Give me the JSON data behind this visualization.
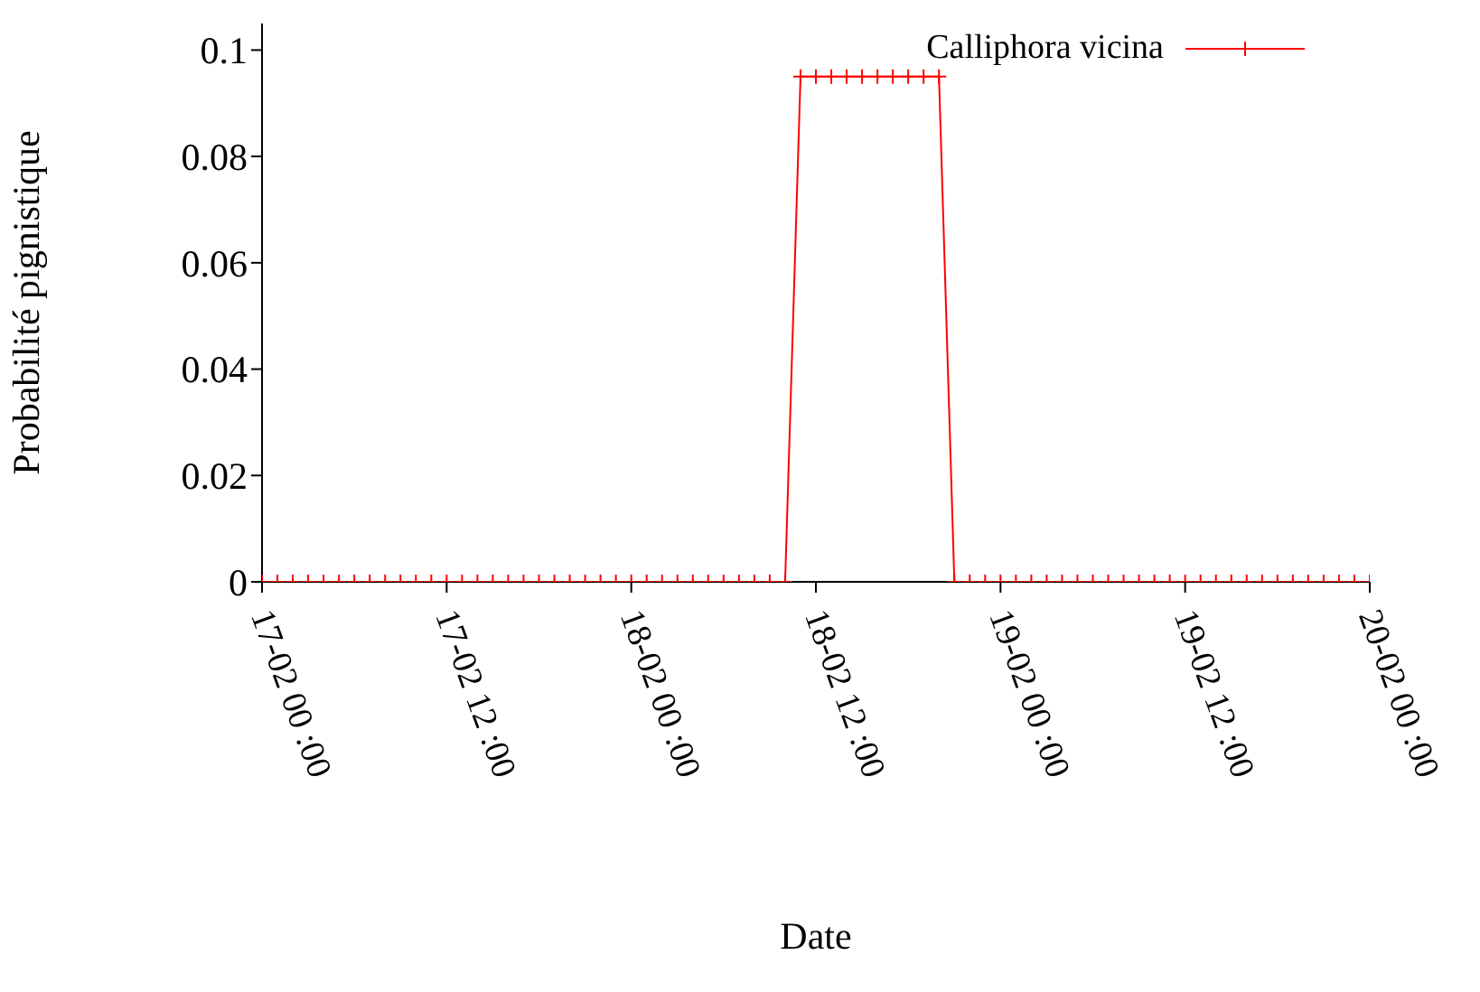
{
  "chart_data": {
    "type": "line",
    "xlabel": "Date",
    "ylabel": "Probabilité pignistique",
    "x": [
      "--02-17T00:00",
      "--02-17T01:00",
      "--02-17T02:00",
      "--02-17T03:00",
      "--02-17T04:00",
      "--02-17T05:00",
      "--02-17T06:00",
      "--02-17T07:00",
      "--02-17T08:00",
      "--02-17T09:00",
      "--02-17T10:00",
      "--02-17T11:00",
      "--02-17T12:00",
      "--02-17T13:00",
      "--02-17T14:00",
      "--02-17T15:00",
      "--02-17T16:00",
      "--02-17T17:00",
      "--02-17T18:00",
      "--02-17T19:00",
      "--02-17T20:00",
      "--02-17T21:00",
      "--02-17T22:00",
      "--02-17T23:00",
      "--02-18T00:00",
      "--02-18T01:00",
      "--02-18T02:00",
      "--02-18T03:00",
      "--02-18T04:00",
      "--02-18T05:00",
      "--02-18T06:00",
      "--02-18T07:00",
      "--02-18T08:00",
      "--02-18T09:00",
      "--02-18T10:00",
      "--02-18T11:00",
      "--02-18T12:00",
      "--02-18T13:00",
      "--02-18T14:00",
      "--02-18T15:00",
      "--02-18T16:00",
      "--02-18T17:00",
      "--02-18T18:00",
      "--02-18T19:00",
      "--02-18T20:00",
      "--02-18T21:00",
      "--02-18T22:00",
      "--02-18T23:00",
      "--02-19T00:00",
      "--02-19T01:00",
      "--02-19T02:00",
      "--02-19T03:00",
      "--02-19T04:00",
      "--02-19T05:00",
      "--02-19T06:00",
      "--02-19T07:00",
      "--02-19T08:00",
      "--02-19T09:00",
      "--02-19T10:00",
      "--02-19T11:00",
      "--02-19T12:00",
      "--02-19T13:00",
      "--02-19T14:00",
      "--02-19T15:00",
      "--02-19T16:00",
      "--02-19T17:00",
      "--02-19T18:00",
      "--02-19T19:00",
      "--02-19T20:00",
      "--02-19T21:00",
      "--02-19T22:00",
      "--02-19T23:00",
      "--02-20T00:00"
    ],
    "series": [
      {
        "name": "Calliphora vicina",
        "color": "#ff0000",
        "values": [
          0,
          0,
          0,
          0,
          0,
          0,
          0,
          0,
          0,
          0,
          0,
          0,
          0,
          0,
          0,
          0,
          0,
          0,
          0,
          0,
          0,
          0,
          0,
          0,
          0,
          0,
          0,
          0,
          0,
          0,
          0,
          0,
          0,
          0,
          0,
          0.095,
          0.095,
          0.095,
          0.095,
          0.095,
          0.095,
          0.095,
          0.095,
          0.095,
          0.095,
          0,
          0,
          0,
          0,
          0,
          0,
          0,
          0,
          0,
          0,
          0,
          0,
          0,
          0,
          0,
          0,
          0,
          0,
          0,
          0,
          0,
          0,
          0,
          0,
          0,
          0,
          0,
          0
        ]
      }
    ],
    "xlim": [
      "--02-17T00:00",
      "--02-20T00:00"
    ],
    "xticks": [
      {
        "value": "--02-17T00:00",
        "label": "17-02 00 :00"
      },
      {
        "value": "--02-17T12:00",
        "label": "17-02 12 :00"
      },
      {
        "value": "--02-18T00:00",
        "label": "18-02 00 :00"
      },
      {
        "value": "--02-18T12:00",
        "label": "18-02 12 :00"
      },
      {
        "value": "--02-19T00:00",
        "label": "19-02 00 :00"
      },
      {
        "value": "--02-19T12:00",
        "label": "19-02 12 :00"
      },
      {
        "value": "--02-20T00:00",
        "label": "20-02 00 :00"
      }
    ],
    "ylim": [
      0,
      0.105
    ],
    "yticks": [
      0,
      0.02,
      0.04,
      0.06,
      0.08,
      {
        "value": 0.1,
        "label": "0.1"
      }
    ],
    "legend": "top right",
    "marker": "cross",
    "line_style": "solid"
  }
}
